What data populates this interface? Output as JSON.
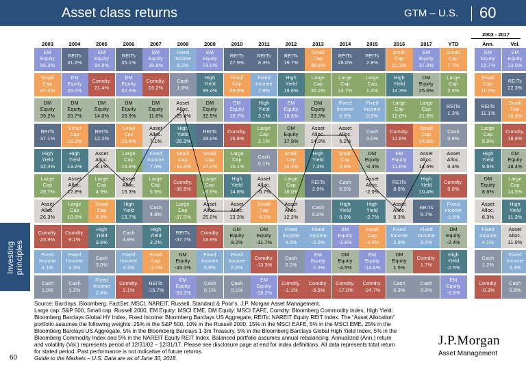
{
  "header": {
    "title": "Asset class returns",
    "region": "GTM – U.S.",
    "page_number": "60"
  },
  "sidebar": {
    "label": "Investing principles"
  },
  "range_label": "2003 - 2017",
  "columns": [
    "2003",
    "2004",
    "2005",
    "2006",
    "2007",
    "2008",
    "2009",
    "2010",
    "2011",
    "2012",
    "2013",
    "2014",
    "2015",
    "2016",
    "2017",
    "YTD",
    "Ann.",
    "Vol."
  ],
  "colors": {
    "REITs": "#5b6f8b",
    "EM Equity": "#8e98d8",
    "Small Cap": "#f2a25a",
    "Large Cap": "#8aa86a",
    "DM Equity": "#a9b6a0",
    "Asset Alloc.": "#d9d5d2",
    "High Yield": "#4e7d8a",
    "Fixed Income": "#8aafd6",
    "Cash": "#8b94a6",
    "Comdty.": "#b85a4e"
  },
  "chart_data": {
    "type": "table",
    "title": "Asset class returns",
    "table": [
      [
        [
          "EM Equity",
          "56.3%"
        ],
        [
          "Small Cap",
          "47.3%"
        ],
        [
          "DM Equity",
          "39.2%"
        ],
        [
          "REITs",
          "37.1%"
        ],
        [
          "High Yield",
          "32.4%"
        ],
        [
          "Large Cap",
          "28.7%"
        ],
        [
          "Asset Alloc.",
          "26.3%"
        ],
        [
          "Comdty.",
          "23.9%"
        ],
        [
          "Fixed Income",
          "4.1%"
        ],
        [
          "Cash",
          "1.0%"
        ]
      ],
      [
        [
          "REITs",
          "31.6%"
        ],
        [
          "EM Equity",
          "26.0%"
        ],
        [
          "DM Equity",
          "20.7%"
        ],
        [
          "Small Cap",
          "18.3%"
        ],
        [
          "High Yield",
          "13.2%"
        ],
        [
          "Asset Alloc.",
          "12.8%"
        ],
        [
          "Large Cap",
          "10.9%"
        ],
        [
          "Comdty.",
          "9.1%"
        ],
        [
          "Fixed Income",
          "4.3%"
        ],
        [
          "Cash",
          "1.2%"
        ]
      ],
      [
        [
          "EM Equity",
          "34.5%"
        ],
        [
          "Comdty.",
          "21.4%"
        ],
        [
          "DM Equity",
          "14.0%"
        ],
        [
          "REITs",
          "12.2%"
        ],
        [
          "Asset Alloc.",
          "8.1%"
        ],
        [
          "Large Cap",
          "4.9%"
        ],
        [
          "Small Cap",
          "4.6%"
        ],
        [
          "High Yield",
          "3.6%"
        ],
        [
          "Cash",
          "3.0%"
        ],
        [
          "Fixed Income",
          "2.4%"
        ]
      ],
      [
        [
          "REITs",
          "35.1%"
        ],
        [
          "EM Equity",
          "32.6%"
        ],
        [
          "DM Equity",
          "26.9%"
        ],
        [
          "Small Cap",
          "18.4%"
        ],
        [
          "Large Cap",
          "15.8%"
        ],
        [
          "Asset Alloc.",
          "15.3%"
        ],
        [
          "High Yield",
          "13.7%"
        ],
        [
          "Cash",
          "4.8%"
        ],
        [
          "Fixed Income",
          "4.3%"
        ],
        [
          "Comdty.",
          "2.1%"
        ]
      ],
      [
        [
          "EM Equity",
          "39.8%"
        ],
        [
          "Comdty.",
          "16.2%"
        ],
        [
          "DM Equity",
          "11.6%"
        ],
        [
          "Asset Alloc.",
          "7.1%"
        ],
        [
          "Fixed Income",
          "7.0%"
        ],
        [
          "Large Cap",
          "5.5%"
        ],
        [
          "Cash",
          "4.8%"
        ],
        [
          "High Yield",
          "3.2%"
        ],
        [
          "Small Cap",
          "-1.6%"
        ],
        [
          "REITs",
          "-15.7%"
        ]
      ],
      [
        [
          "Fixed Income",
          "5.2%"
        ],
        [
          "Cash",
          "1.8%"
        ],
        [
          "Asset Alloc.",
          "-25.4%"
        ],
        [
          "High Yield",
          "-26.9%"
        ],
        [
          "Small Cap",
          "-33.8%"
        ],
        [
          "Comdty.",
          "-35.6%"
        ],
        [
          "Large Cap",
          "-37.0%"
        ],
        [
          "REITs",
          "-37.7%"
        ],
        [
          "DM Equity",
          "-43.1%"
        ],
        [
          "EM Equity",
          "-53.2%"
        ]
      ],
      [
        [
          "EM Equity",
          "79.0%"
        ],
        [
          "High Yield",
          "59.4%"
        ],
        [
          "DM Equity",
          "32.5%"
        ],
        [
          "REITs",
          "28.0%"
        ],
        [
          "Small Cap",
          "27.2%"
        ],
        [
          "Large Cap",
          "26.5%"
        ],
        [
          "Asset Alloc.",
          "25.0%"
        ],
        [
          "Comdty.",
          "18.9%"
        ],
        [
          "Fixed Income",
          "5.9%"
        ],
        [
          "Cash",
          "0.1%"
        ]
      ],
      [
        [
          "REITs",
          "27.9%"
        ],
        [
          "Small Cap",
          "26.9%"
        ],
        [
          "EM Equity",
          "19.2%"
        ],
        [
          "Comdty.",
          "16.8%"
        ],
        [
          "Large Cap",
          "15.1%"
        ],
        [
          "High Yield",
          "14.8%"
        ],
        [
          "Asset Alloc.",
          "13.3%"
        ],
        [
          "DM Equity",
          "8.2%"
        ],
        [
          "Fixed Income",
          "6.5%"
        ],
        [
          "Cash",
          "0.1%"
        ]
      ],
      [
        [
          "REITs",
          "8.3%"
        ],
        [
          "Fixed Income",
          "7.8%"
        ],
        [
          "High Yield",
          "3.1%"
        ],
        [
          "Large Cap",
          "2.1%"
        ],
        [
          "Cash",
          "0.1%"
        ],
        [
          "Asset Alloc.",
          "-0.7%"
        ],
        [
          "Small Cap",
          "-4.2%"
        ],
        [
          "DM Equity",
          "-11.7%"
        ],
        [
          "Comdty.",
          "-13.3%"
        ],
        [
          "EM Equity",
          "-18.2%"
        ]
      ],
      [
        [
          "REITs",
          "19.7%"
        ],
        [
          "High Yield",
          "19.6%"
        ],
        [
          "EM Equity",
          "18.6%"
        ],
        [
          "DM Equity",
          "17.9%"
        ],
        [
          "Small Cap",
          "16.3%"
        ],
        [
          "Large Cap",
          "16.0%"
        ],
        [
          "Asset Alloc.",
          "12.2%"
        ],
        [
          "Fixed Income",
          "4.2%"
        ],
        [
          "Cash",
          "0.1%"
        ],
        [
          "Comdty.",
          "-1.1%"
        ]
      ],
      [
        [
          "Small Cap",
          "38.8%"
        ],
        [
          "Large Cap",
          "32.4%"
        ],
        [
          "DM Equity",
          "23.3%"
        ],
        [
          "Asset Alloc.",
          "14.9%"
        ],
        [
          "High Yield",
          "7.3%"
        ],
        [
          "REITs",
          "2.9%"
        ],
        [
          "Cash",
          "0.0%"
        ],
        [
          "Fixed Income",
          "-2.0%"
        ],
        [
          "EM Equity",
          "-2.3%"
        ],
        [
          "Comdty.",
          "-9.5%"
        ]
      ],
      [
        [
          "REITs",
          "28.0%"
        ],
        [
          "Large Cap",
          "13.7%"
        ],
        [
          "Fixed Income",
          "6.0%"
        ],
        [
          "Asset Alloc.",
          "5.2%"
        ],
        [
          "Small Cap",
          "4.9%"
        ],
        [
          "Cash",
          "0.0%"
        ],
        [
          "High Yield",
          "0.0%"
        ],
        [
          "EM Equity",
          "-1.8%"
        ],
        [
          "DM Equity",
          "-4.5%"
        ],
        [
          "Comdty.",
          "-17.0%"
        ]
      ],
      [
        [
          "REITs",
          "2.8%"
        ],
        [
          "Large Cap",
          "1.4%"
        ],
        [
          "Fixed Income",
          "0.5%"
        ],
        [
          "Cash",
          "0.0%"
        ],
        [
          "DM Equity",
          "-0.4%"
        ],
        [
          "Asset Alloc.",
          "-2.0%"
        ],
        [
          "High Yield",
          "-2.7%"
        ],
        [
          "Small Cap",
          "-4.4%"
        ],
        [
          "EM Equity",
          "-14.6%"
        ],
        [
          "Comdty.",
          "-24.7%"
        ]
      ],
      [
        [
          "Small Cap",
          "21.3%"
        ],
        [
          "High Yield",
          "14.3%"
        ],
        [
          "Large Cap",
          "12.0%"
        ],
        [
          "Comdty.",
          "11.8%"
        ],
        [
          "EM Equity",
          "11.6%"
        ],
        [
          "REITs",
          "8.6%"
        ],
        [
          "Asset Alloc.",
          "8.3%"
        ],
        [
          "Fixed Income",
          "2.6%"
        ],
        [
          "DM Equity",
          "1.5%"
        ],
        [
          "Cash",
          "0.3%"
        ]
      ],
      [
        [
          "EM Equity",
          "37.8%"
        ],
        [
          "DM Equity",
          "25.6%"
        ],
        [
          "Large Cap",
          "21.8%"
        ],
        [
          "Small Cap",
          "14.6%"
        ],
        [
          "Asset Alloc.",
          "14.6%"
        ],
        [
          "High Yield",
          "10.4%"
        ],
        [
          "REITs",
          "8.7%"
        ],
        [
          "Fixed Income",
          "3.5%"
        ],
        [
          "Comdty.",
          "1.7%"
        ],
        [
          "Cash",
          "0.8%"
        ]
      ],
      [
        [
          "Small Cap",
          "7.7%"
        ],
        [
          "Large Cap",
          "2.6%"
        ],
        [
          "REITs",
          "1.3%"
        ],
        [
          "Cash",
          "0.8%"
        ],
        [
          "Asset Alloc.",
          "0.3%"
        ],
        [
          "Comdty.",
          "0.0%"
        ],
        [
          "Fixed Income",
          "-1.6%"
        ],
        [
          "DM Equity",
          "-2.4%"
        ],
        [
          "High Yield",
          "-2.5%"
        ],
        [
          "EM Equity",
          "-6.5%"
        ]
      ],
      [
        [
          "EM Equity",
          "12.7%"
        ],
        [
          "Small Cap",
          "11.2%"
        ],
        [
          "REITs",
          "11.1%"
        ],
        [
          "Large Cap",
          "9.9%"
        ],
        [
          "High Yield",
          "9.6%"
        ],
        [
          "DM Equity",
          "8.6%"
        ],
        [
          "Asset Alloc.",
          "8.3%"
        ],
        [
          "Fixed Income",
          "4.1%"
        ],
        [
          "Cash",
          "1.2%"
        ],
        [
          "Comdty.",
          "-0.3%"
        ]
      ],
      [
        [
          "EM Equity",
          "23.0%"
        ],
        [
          "REITs",
          "22.3%"
        ],
        [
          "Small Cap",
          "18.8%"
        ],
        [
          "Comdty.",
          "18.8%"
        ],
        [
          "DM Equity",
          "18.4%"
        ],
        [
          "Large Cap",
          "14.5%"
        ],
        [
          "High Yield",
          "11.3%"
        ],
        [
          "Asset Alloc.",
          "11.0%"
        ],
        [
          "Fixed Income",
          "3.3%"
        ],
        [
          "Cash",
          "0.8%"
        ]
      ]
    ]
  },
  "footnote": {
    "line1": "Source: Barclays, Bloomberg, FactSet, MSCI, NAREIT, Russell, Standard & Poor’s, J.P. Morgan Asset Management.",
    "line2": "Large cap: S&P 500, Small cap: Russell 2000, EM Equity: MSCI EME, DM Equity: MSCI EAFE, Comdty: Bloomberg Commodity Index, High Yield:",
    "line3": "Bloomberg Barclays Global HY Index, Fixed Income: Bloomberg Barclays US Aggregate, REITs: NAREIT Equity REIT Index. The “Asset Allocation”",
    "line4": "portfolio assumes the following weights: 25% in the S&P 500, 10% in the Russell 2000, 15% in the MSCI EAFE, 5% in the MSCI EME, 25% in the",
    "line5": "Bloomberg Barclays US Aggregate, 5% in the Bloomberg Barclays 1-3m Treasury, 5% in the Bloomberg Barclays Global High Yield Index, 5% in the",
    "line6": "Bloomberg Commodity Index and 5% in the NAREIT Equity REIT Index. Balanced portfolio assumes annual rebalancing. Annualized (Ann.) return",
    "line7": "and volatility (Vol.) represents period of 12/31/02 – 12/31/17. Please see disclosure page at end for index definitions. All data represents total return",
    "line8": "for stated period. Past performance is not indicative of future returns.",
    "line9": "Guide to the Markets – U.S. Data are as of June 30, 2018."
  },
  "footer": {
    "page": "60",
    "logo_main": "J.P.Morgan",
    "logo_sub": "Asset Management"
  }
}
